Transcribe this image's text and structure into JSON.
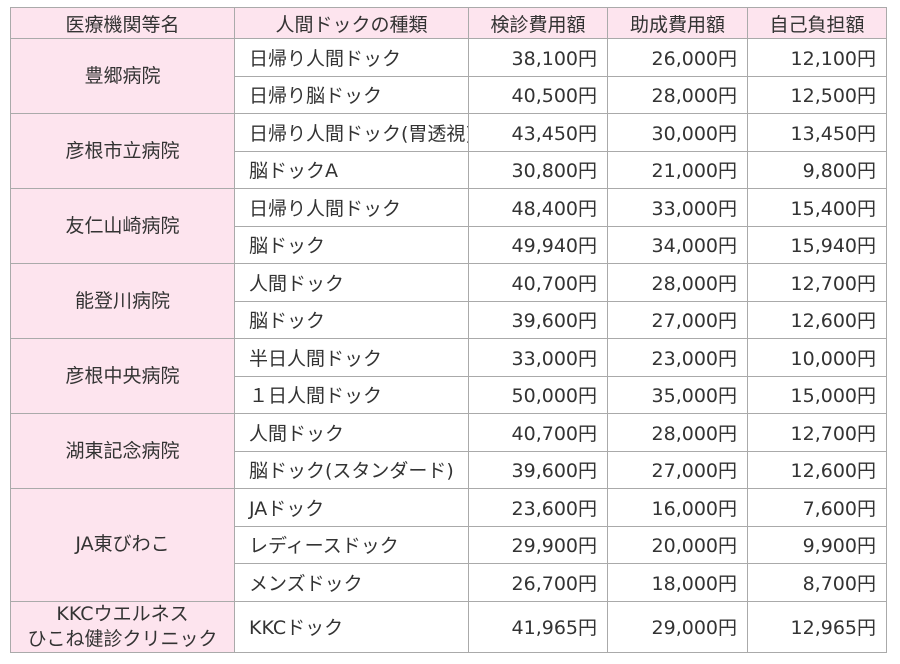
{
  "headers": {
    "hospital": "医療機関等名",
    "dock_type": "人間ドックの種類",
    "exam_fee": "検診費用額",
    "subsidy": "助成費用額",
    "self_pay": "自己負担額"
  },
  "hospitals": [
    {
      "name_lines": [
        "豊郷病院"
      ],
      "rows": [
        {
          "type": "日帰り人間ドック",
          "fee": "38,100円",
          "subsidy": "26,000円",
          "self": "12,100円"
        },
        {
          "type": "日帰り脳ドック",
          "fee": "40,500円",
          "subsidy": "28,000円",
          "self": "12,500円"
        }
      ]
    },
    {
      "name_lines": [
        "彦根市立病院"
      ],
      "rows": [
        {
          "type": "日帰り人間ドック(胃透視)",
          "fee": "43,450円",
          "subsidy": "30,000円",
          "self": "13,450円"
        },
        {
          "type": "脳ドックA",
          "fee": "30,800円",
          "subsidy": "21,000円",
          "self": "9,800円"
        }
      ]
    },
    {
      "name_lines": [
        "友仁山崎病院"
      ],
      "rows": [
        {
          "type": "日帰り人間ドック",
          "fee": "48,400円",
          "subsidy": "33,000円",
          "self": "15,400円"
        },
        {
          "type": "脳ドック",
          "fee": "49,940円",
          "subsidy": "34,000円",
          "self": "15,940円"
        }
      ]
    },
    {
      "name_lines": [
        "能登川病院"
      ],
      "rows": [
        {
          "type": "人間ドック",
          "fee": "40,700円",
          "subsidy": "28,000円",
          "self": "12,700円"
        },
        {
          "type": "脳ドック",
          "fee": "39,600円",
          "subsidy": "27,000円",
          "self": "12,600円"
        }
      ]
    },
    {
      "name_lines": [
        "彦根中央病院"
      ],
      "rows": [
        {
          "type": "半日人間ドック",
          "fee": "33,000円",
          "subsidy": "23,000円",
          "self": "10,000円"
        },
        {
          "type": "１日人間ドック",
          "fee": "50,000円",
          "subsidy": "35,000円",
          "self": "15,000円"
        }
      ]
    },
    {
      "name_lines": [
        "湖東記念病院"
      ],
      "rows": [
        {
          "type": "人間ドック",
          "fee": "40,700円",
          "subsidy": "28,000円",
          "self": "12,700円"
        },
        {
          "type": "脳ドック(スタンダード)",
          "fee": "39,600円",
          "subsidy": "27,000円",
          "self": "12,600円"
        }
      ]
    },
    {
      "name_lines": [
        "JA東びわこ"
      ],
      "rows": [
        {
          "type": "JAドック",
          "fee": "23,600円",
          "subsidy": "16,000円",
          "self": "7,600円"
        },
        {
          "type": "レディースドック",
          "fee": "29,900円",
          "subsidy": "20,000円",
          "self": "9,900円"
        },
        {
          "type": "メンズドック",
          "fee": "26,700円",
          "subsidy": "18,000円",
          "self": "8,700円"
        }
      ]
    },
    {
      "name_lines": [
        "KKCウエルネス",
        "ひこね健診クリニック"
      ],
      "rows": [
        {
          "type": "KKCドック",
          "fee": "41,965円",
          "subsidy": "29,000円",
          "self": "12,965円"
        }
      ]
    }
  ]
}
